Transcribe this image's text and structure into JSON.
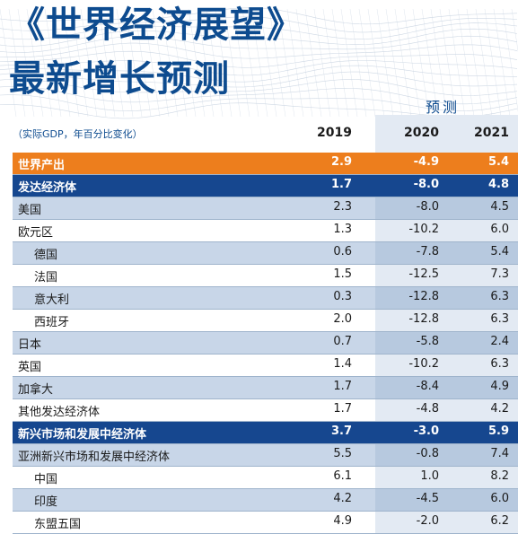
{
  "title": {
    "line1": "《世界经济展望》",
    "line2": "最新增长预测"
  },
  "subtitle": "（实际GDP，年百分比变化）",
  "forecast_label": "预测",
  "chart_data": {
    "type": "table",
    "columns": [
      "2019",
      "2020",
      "2021"
    ],
    "rows": [
      {
        "name": "世界产出",
        "values": [
          "2.9",
          "-4.9",
          "5.4"
        ],
        "style": "world",
        "indent": false
      },
      {
        "name": "发达经济体",
        "values": [
          "1.7",
          "-8.0",
          "4.8"
        ],
        "style": "group",
        "indent": false
      },
      {
        "name": "美国",
        "values": [
          "2.3",
          "-8.0",
          "4.5"
        ],
        "style": "shaded",
        "indent": false
      },
      {
        "name": "欧元区",
        "values": [
          "1.3",
          "-10.2",
          "6.0"
        ],
        "style": "plain",
        "indent": false
      },
      {
        "name": "德国",
        "values": [
          "0.6",
          "-7.8",
          "5.4"
        ],
        "style": "shaded",
        "indent": true
      },
      {
        "name": "法国",
        "values": [
          "1.5",
          "-12.5",
          "7.3"
        ],
        "style": "plain",
        "indent": true
      },
      {
        "name": "意大利",
        "values": [
          "0.3",
          "-12.8",
          "6.3"
        ],
        "style": "shaded",
        "indent": true
      },
      {
        "name": "西班牙",
        "values": [
          "2.0",
          "-12.8",
          "6.3"
        ],
        "style": "plain",
        "indent": true
      },
      {
        "name": "日本",
        "values": [
          "0.7",
          "-5.8",
          "2.4"
        ],
        "style": "shaded",
        "indent": false
      },
      {
        "name": "英国",
        "values": [
          "1.4",
          "-10.2",
          "6.3"
        ],
        "style": "plain",
        "indent": false
      },
      {
        "name": "加拿大",
        "values": [
          "1.7",
          "-8.4",
          "4.9"
        ],
        "style": "shaded",
        "indent": false
      },
      {
        "name": "其他发达经济体",
        "values": [
          "1.7",
          "-4.8",
          "4.2"
        ],
        "style": "plain",
        "indent": false
      },
      {
        "name": "新兴市场和发展中经济体",
        "values": [
          "3.7",
          "-3.0",
          "5.9"
        ],
        "style": "group",
        "indent": false
      },
      {
        "name": "亚洲新兴市场和发展中经济体",
        "values": [
          "5.5",
          "-0.8",
          "7.4"
        ],
        "style": "shaded",
        "indent": false
      },
      {
        "name": "中国",
        "values": [
          "6.1",
          "1.0",
          "8.2"
        ],
        "style": "plain",
        "indent": true
      },
      {
        "name": "印度",
        "values": [
          "4.2",
          "-4.5",
          "6.0"
        ],
        "style": "shaded",
        "indent": true
      },
      {
        "name": "东盟五国",
        "values": [
          "4.9",
          "-2.0",
          "6.2"
        ],
        "style": "plain",
        "indent": true
      }
    ]
  },
  "colors": {
    "title": "#0d4b8f",
    "world_row": "#ed7e1d",
    "group_row": "#16478f",
    "shaded_row": "#c8d6e8",
    "forecast_band": "#e3eaf3"
  }
}
